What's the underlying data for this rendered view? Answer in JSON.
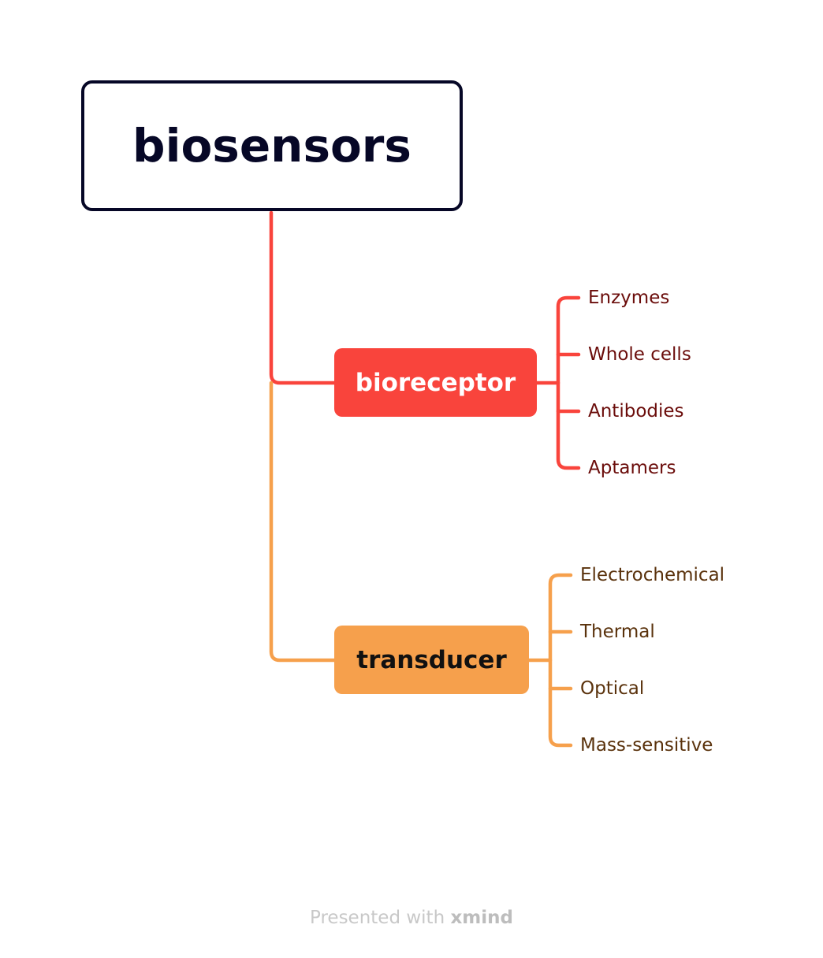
{
  "root": {
    "label": "biosensors",
    "border_color": "#060726",
    "text_color": "#060726"
  },
  "branches": [
    {
      "label": "bioreceptor",
      "fill_color": "#f9443c",
      "text_color": "#ffffff",
      "leaf_text_color": "#6b0d0b",
      "leaves": [
        "Enzymes",
        "Whole cells",
        "Antibodies",
        "Aptamers"
      ]
    },
    {
      "label": "transducer",
      "fill_color": "#f6a04c",
      "text_color": "#111111",
      "leaf_text_color": "#5a320c",
      "leaves": [
        "Electrochemical",
        "Thermal",
        "Optical",
        "Mass-sensitive"
      ]
    }
  ],
  "footer": {
    "prefix": "Presented with",
    "brand": "xmind"
  }
}
